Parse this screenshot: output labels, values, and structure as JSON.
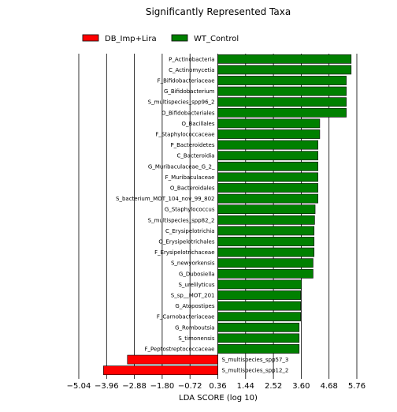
{
  "chart_data": {
    "type": "bar",
    "orientation": "horizontal",
    "title": "Significantly Represented Taxa",
    "xlabel": "LDA SCORE (log 10)",
    "ylabel": "",
    "xlim": [
      -5.04,
      5.76
    ],
    "xticks": [
      -5.04,
      -3.96,
      -2.88,
      -1.8,
      -0.72,
      0.36,
      1.44,
      2.52,
      3.6,
      4.68,
      5.76
    ],
    "xtick_labels": [
      "−5.04",
      "−3.96",
      "−2.88",
      "−1.80",
      "−0.72",
      "0.36",
      "1.44",
      "2.52",
      "3.60",
      "4.68",
      "5.76"
    ],
    "grid": "vertical",
    "legend_position": "top-left",
    "series": [
      {
        "name": "DB_Imp+Lira",
        "color": "#ff0000"
      },
      {
        "name": "WT_Control",
        "color": "#008000"
      }
    ],
    "categories": [
      "P_Actinobacteria",
      "C_Actinomycetia",
      "F_Bifidobacteriaceae",
      "G_Bifidobacterium",
      "S_multispecies_spp96_2",
      "O_Bifidobacteriales",
      "O_Bacillales",
      "F_Staphylococcaceae",
      "P_Bacteroidetes",
      "C_Bacteroidia",
      "G_Muribaculaceae_G_2_",
      "F_Muribaculaceae",
      "O_Bacteroidales",
      "S_bacterium_MOT_104_nov_99_802",
      "G_Staphylococcus",
      "S_multispecies_spp82_2",
      "C_Erysipelotrichia",
      "O_Erysipelotrichales",
      "F_Erysipelotrichaceae",
      "S_newyorkensis",
      "G_Dubosiella",
      "S_urelilyticus",
      "S_sp__MOT_201",
      "G_Atopostipes",
      "F_Carnobacteriaceae",
      "G_Romboutsia",
      "S_timonensis",
      "F_Peptostreptococcaceae",
      "S_multispecies_spp57_3",
      "S_multispecies_spp12_2"
    ],
    "values": [
      5.18,
      5.18,
      4.99,
      4.99,
      4.99,
      4.99,
      3.96,
      3.96,
      3.89,
      3.89,
      3.89,
      3.89,
      3.89,
      3.89,
      3.78,
      3.76,
      3.74,
      3.74,
      3.74,
      3.7,
      3.7,
      3.25,
      3.22,
      3.22,
      3.22,
      3.16,
      3.16,
      3.16,
      -3.51,
      -4.44
    ],
    "groups": [
      "WT_Control",
      "WT_Control",
      "WT_Control",
      "WT_Control",
      "WT_Control",
      "WT_Control",
      "WT_Control",
      "WT_Control",
      "WT_Control",
      "WT_Control",
      "WT_Control",
      "WT_Control",
      "WT_Control",
      "WT_Control",
      "WT_Control",
      "WT_Control",
      "WT_Control",
      "WT_Control",
      "WT_Control",
      "WT_Control",
      "WT_Control",
      "WT_Control",
      "WT_Control",
      "WT_Control",
      "WT_Control",
      "WT_Control",
      "WT_Control",
      "WT_Control",
      "DB_Imp+Lira",
      "DB_Imp+Lira"
    ]
  }
}
